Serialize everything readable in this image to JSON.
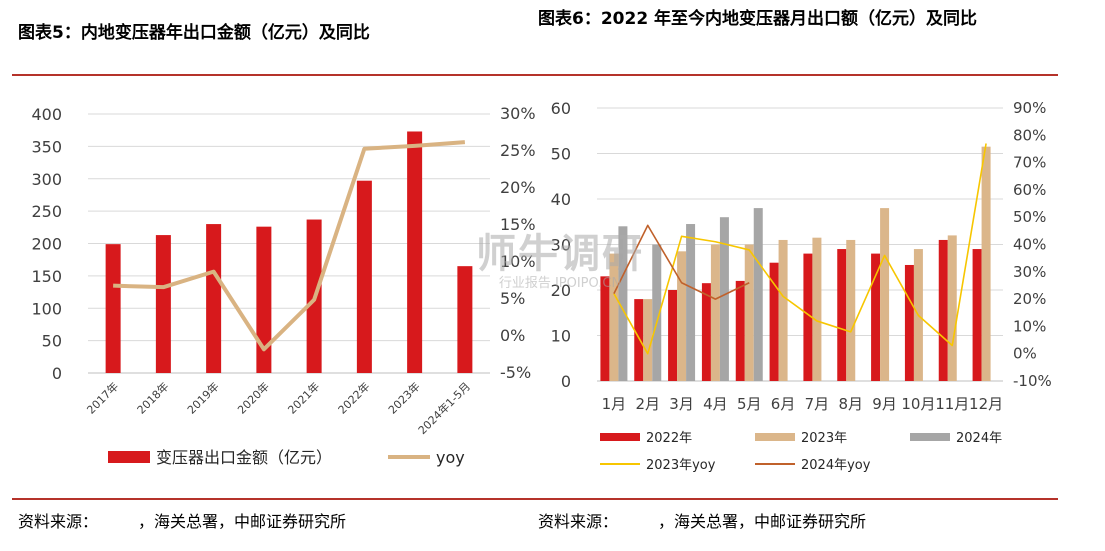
{
  "chart_data": [
    {
      "type": "bar",
      "title": "图表5：内地变压器年出口金额（亿元）及同比",
      "categories": [
        "2017年",
        "2018年",
        "2019年",
        "2020年",
        "2021年",
        "2022年",
        "2023年",
        "2024年1-5月"
      ],
      "series": [
        {
          "name": "变压器出口金额（亿元）",
          "type": "bar",
          "axis": "left",
          "color": "#d7191c",
          "values": [
            199,
            213,
            230,
            226,
            237,
            297,
            373,
            165
          ]
        },
        {
          "name": "yoy",
          "type": "line",
          "axis": "right",
          "color": "#d9b382",
          "values": [
            6.8,
            6.6,
            8.7,
            -1.8,
            4.9,
            25.3,
            25.7,
            26.2
          ]
        }
      ],
      "y_left": {
        "min": 0,
        "max": 400,
        "ticks": [
          "0",
          "50",
          "100",
          "150",
          "200",
          "250",
          "300",
          "350",
          "400"
        ]
      },
      "y_right": {
        "min": -5,
        "max": 30,
        "ticks": [
          "-5%",
          "0%",
          "5%",
          "10%",
          "15%",
          "20%",
          "25%",
          "30%"
        ]
      },
      "grid": true,
      "legend_position": "bottom"
    },
    {
      "type": "bar",
      "title": "图表6：2022 年至今内地变压器月出口额（亿元）及同比",
      "categories": [
        "1月",
        "2月",
        "3月",
        "4月",
        "5月",
        "6月",
        "7月",
        "8月",
        "9月",
        "10月",
        "11月",
        "12月"
      ],
      "series": [
        {
          "name": "2022年",
          "type": "bar",
          "axis": "left",
          "color": "#d7191c",
          "values": [
            23,
            18,
            20,
            21.5,
            22,
            26,
            28,
            29,
            28,
            25.5,
            31,
            29
          ]
        },
        {
          "name": "2023年",
          "type": "bar",
          "axis": "left",
          "color": "#dbb68a",
          "values": [
            28,
            18,
            28.5,
            30,
            30,
            31,
            31.5,
            31,
            38,
            29,
            32,
            51.5
          ]
        },
        {
          "name": "2024年",
          "type": "bar",
          "axis": "left",
          "color": "#a6a6a6",
          "values": [
            34,
            30,
            34.5,
            36,
            38,
            null,
            null,
            null,
            null,
            null,
            null,
            null
          ]
        },
        {
          "name": "2023年yoy",
          "type": "line",
          "axis": "right",
          "color": "#f7c600",
          "values": [
            22,
            0,
            43,
            41,
            38,
            21,
            12,
            8,
            36,
            14,
            3,
            77
          ]
        },
        {
          "name": "2024年yoy",
          "type": "line",
          "axis": "right",
          "color": "#c0612b",
          "values": [
            22,
            47,
            26,
            20,
            26,
            null,
            null,
            null,
            null,
            null,
            null,
            null
          ]
        }
      ],
      "y_left": {
        "min": 0,
        "max": 60,
        "ticks": [
          "0",
          "10",
          "20",
          "30",
          "40",
          "50",
          "60"
        ]
      },
      "y_right": {
        "min": -10,
        "max": 90,
        "ticks": [
          "-10%",
          "0%",
          "10%",
          "20%",
          "30%",
          "40%",
          "50%",
          "60%",
          "70%",
          "80%",
          "90%"
        ]
      },
      "grid": true,
      "legend_position": "bottom"
    }
  ],
  "source_left": "资料来源：　　　，海关总署，中邮证券研究所",
  "source_right": "资料来源：　　　，海关总署，中邮证券研究所",
  "watermark": {
    "line1": "师牛调研",
    "line2": "行业报告 IPOIPO.CN"
  }
}
